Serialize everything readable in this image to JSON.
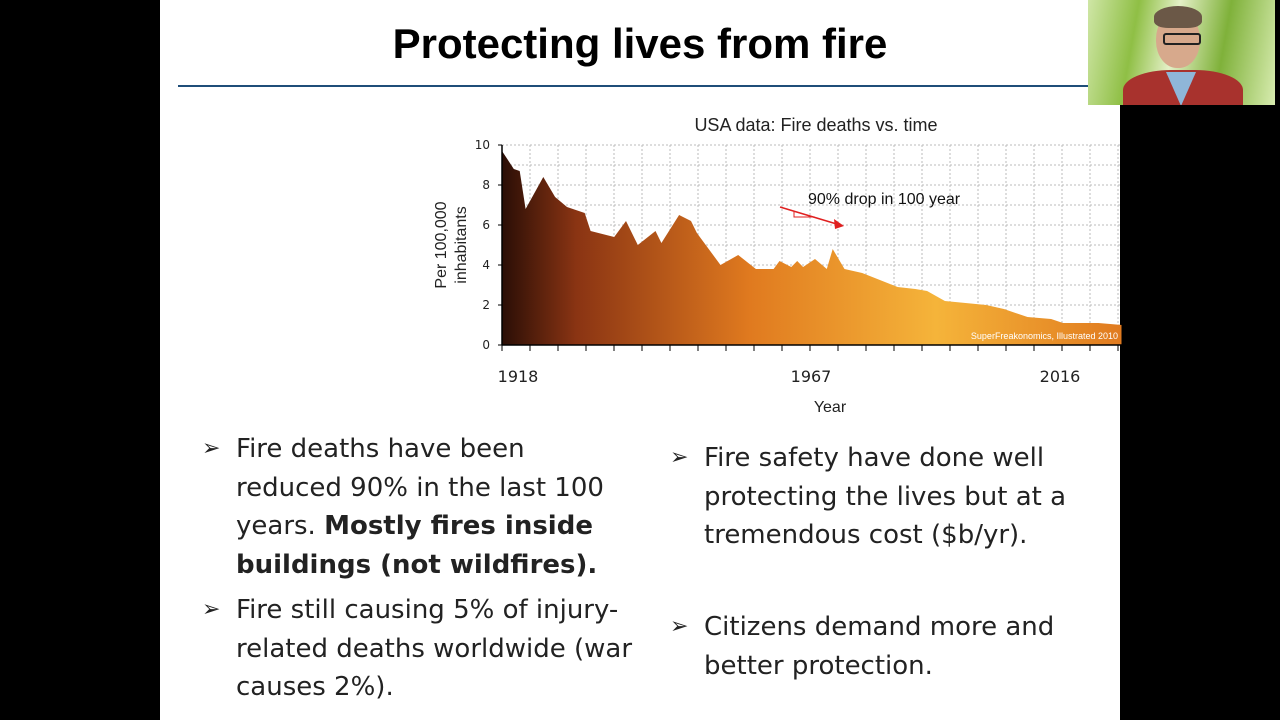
{
  "slide": {
    "title": "Protecting lives from fire",
    "bullets_left": [
      {
        "text": "Fire deaths have been reduced 90% in the last 100 years. ",
        "bold": "Mostly fires inside buildings (not wildfires)."
      },
      {
        "text": "Fire still causing 5% of injury-related deaths worldwide (war causes 2%).",
        "bold": ""
      }
    ],
    "bullets_right": [
      {
        "text": "Fire safety have done well protecting the lives but at a tremendous cost ($b/yr).",
        "bold": ""
      },
      {
        "text": "Citizens demand more and better protection.",
        "bold": ""
      }
    ],
    "bullet_icon": "arrowhead-bullet-icon",
    "bullet_glyph": "➢"
  },
  "webcam": {
    "label": "presenter-video"
  },
  "chart_data": {
    "type": "area",
    "title": "USA data: Fire deaths vs. time",
    "xlabel": "Year",
    "ylabel": "Per 100,000 inhabitants",
    "xlim": [
      1915,
      2020
    ],
    "ylim": [
      0,
      10
    ],
    "yticks": [
      0,
      2,
      4,
      6,
      8,
      10
    ],
    "xticklabels": [
      1918,
      1967,
      2016
    ],
    "grid": true,
    "annotation": "90% drop in 100 year",
    "source": "SuperFreakonomics, Illustrated 2010",
    "fill_colors": [
      "#2a0e06",
      "#8a3413",
      "#e07a1f",
      "#f5b43a"
    ],
    "annotation_color": "#e02020",
    "x": [
      1915,
      1917,
      1918,
      1919,
      1922,
      1924,
      1926,
      1929,
      1930,
      1934,
      1936,
      1938,
      1941,
      1942,
      1945,
      1947,
      1948,
      1952,
      1955,
      1958,
      1961,
      1962,
      1964,
      1965,
      1966,
      1968,
      1970,
      1971,
      1973,
      1976,
      1982,
      1985,
      1987,
      1990,
      1997,
      2000,
      2004,
      2008,
      2010,
      2016,
      2020
    ],
    "values": [
      9.7,
      8.8,
      8.7,
      6.8,
      8.4,
      7.4,
      6.9,
      6.6,
      5.7,
      5.4,
      6.2,
      5.0,
      5.7,
      5.1,
      6.5,
      6.2,
      5.6,
      4.0,
      4.5,
      3.8,
      3.8,
      4.2,
      3.9,
      4.2,
      3.9,
      4.3,
      3.8,
      4.8,
      3.8,
      3.6,
      2.9,
      2.8,
      2.7,
      2.2,
      2.0,
      1.8,
      1.4,
      1.3,
      1.1,
      1.1,
      1.0
    ]
  }
}
